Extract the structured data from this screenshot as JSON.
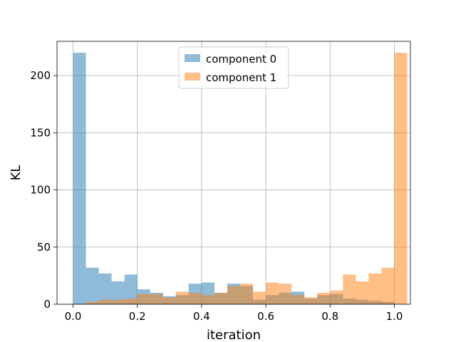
{
  "chart_data": {
    "type": "bar",
    "subtype": "histogram",
    "title": "",
    "xlabel": "iteration",
    "ylabel": "KL",
    "xlim": [
      -0.05,
      1.05
    ],
    "ylim": [
      0,
      230
    ],
    "xticks": [
      "0.0",
      "0.2",
      "0.4",
      "0.6",
      "0.8",
      "1.0"
    ],
    "xtick_values": [
      0.0,
      0.2,
      0.4,
      0.6,
      0.8,
      1.0
    ],
    "yticks": [
      "0",
      "50",
      "100",
      "150",
      "200"
    ],
    "ytick_values": [
      0,
      50,
      100,
      150,
      200
    ],
    "grid": true,
    "legend_position": "top-center",
    "bin_start": 0.0,
    "bin_width": 0.04,
    "series": [
      {
        "name": "component 0",
        "color": "#1f77b4",
        "alpha": 0.5,
        "values": [
          220,
          32,
          27,
          20,
          26,
          13,
          10,
          7,
          8,
          18,
          19,
          10,
          18,
          16,
          4,
          8,
          10,
          11,
          5,
          8,
          9,
          5,
          4,
          3,
          2,
          0
        ]
      },
      {
        "name": "component 1",
        "color": "#ff7f0e",
        "alpha": 0.5,
        "values": [
          0,
          2,
          4,
          4,
          5,
          9,
          9,
          6,
          11,
          10,
          8,
          10,
          16,
          18,
          11,
          19,
          18,
          8,
          6,
          10,
          12,
          26,
          20,
          27,
          32,
          220
        ]
      }
    ]
  }
}
